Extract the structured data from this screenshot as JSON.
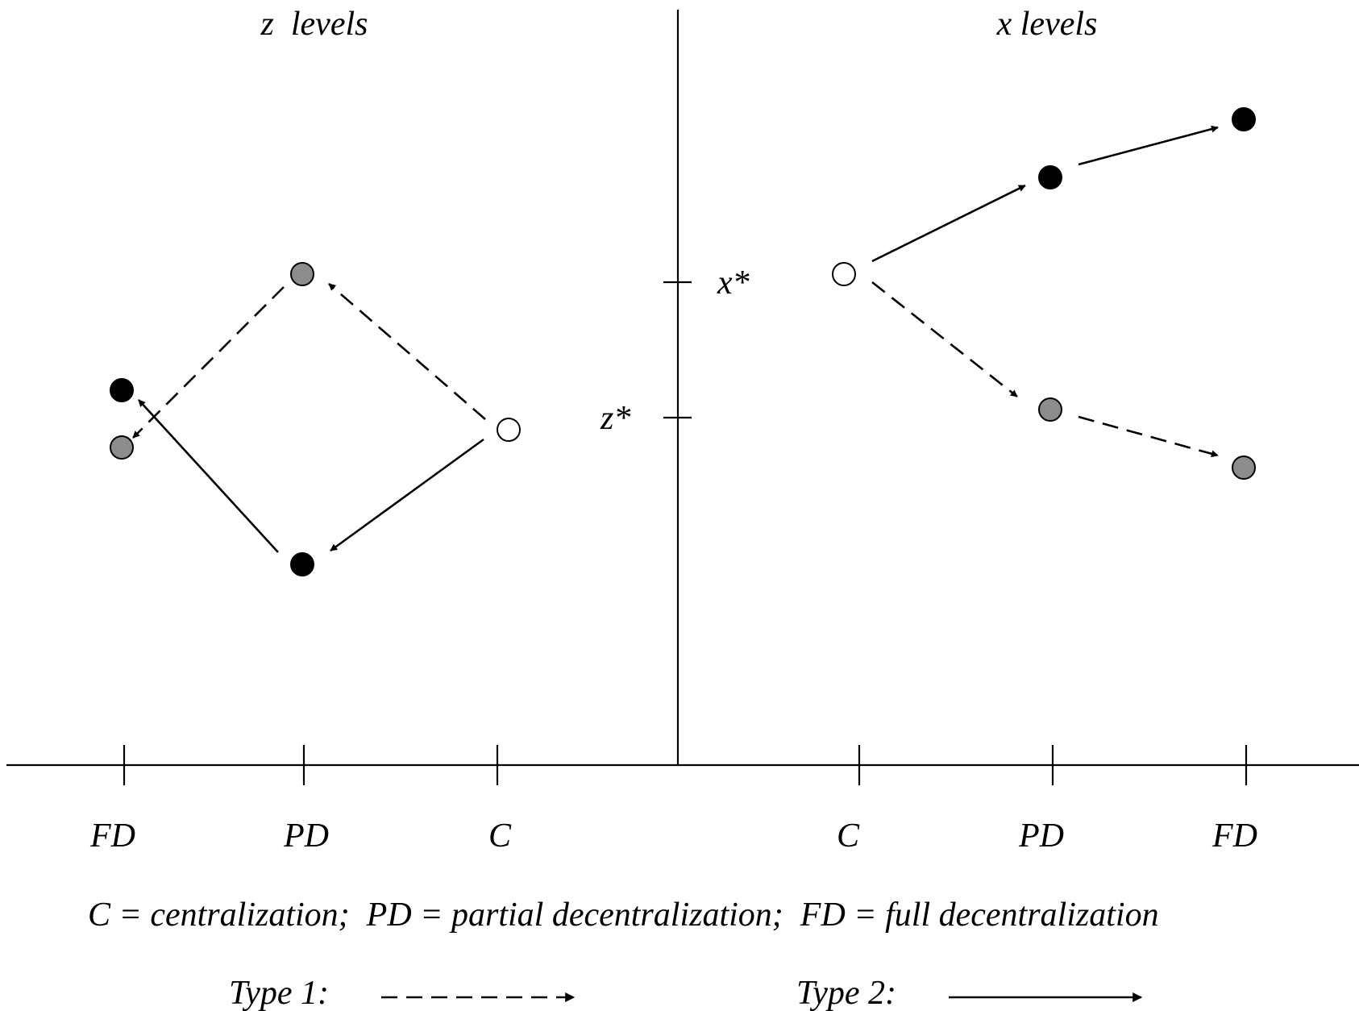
{
  "panels": {
    "left_title": "z  levels",
    "right_title": "x levels"
  },
  "axis_markers": {
    "x_star": "x*",
    "z_star": "z*"
  },
  "left_categories": [
    "FD",
    "PD",
    "C"
  ],
  "right_categories": [
    "C",
    "PD",
    "FD"
  ],
  "caption": "C = centralization;  PD = partial decentralization;  FD = full decentralization",
  "legend": {
    "type1_label": "Type 1:",
    "type1_style": "dashed",
    "type2_label": "Type 2:",
    "type2_style": "solid"
  },
  "colors": {
    "black_point": "#000000",
    "gray_point": "#8c8c8c",
    "open_point": "#ffffff",
    "line": "#000000"
  }
}
